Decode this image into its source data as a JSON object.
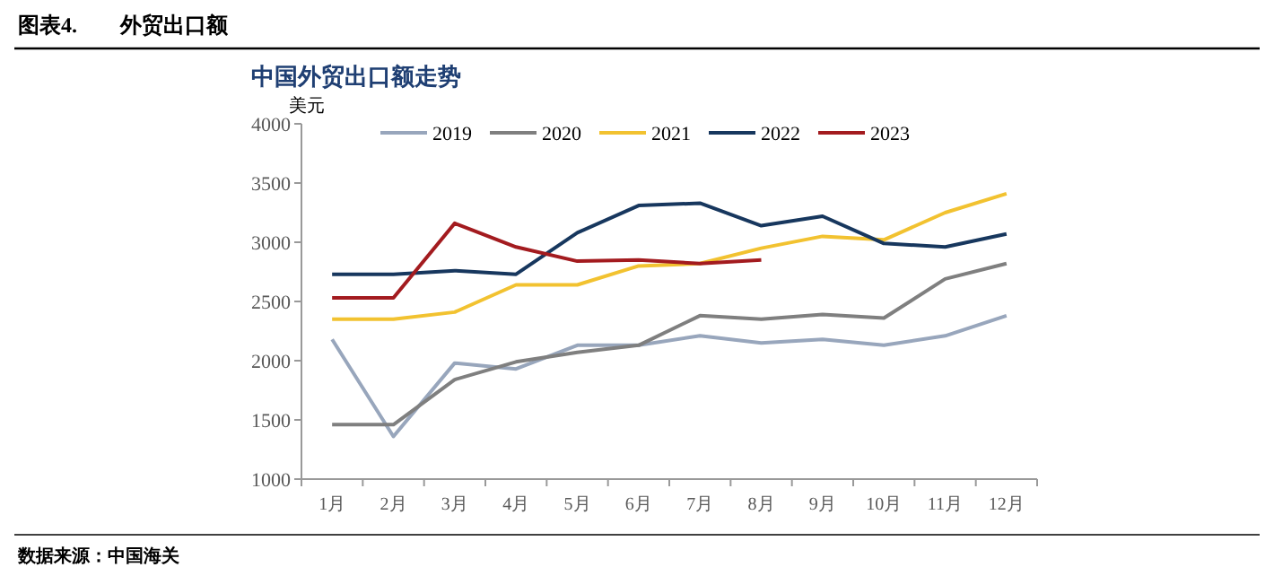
{
  "chart_data": {
    "type": "line",
    "title": "中国外贸出口额走势",
    "subtitle": "图表4.　　外贸出口额",
    "ylabel": "美元",
    "annotations": [
      "数据来源：中国海关"
    ],
    "categories": [
      "1月",
      "2月",
      "3月",
      "4月",
      "5月",
      "6月",
      "7月",
      "8月",
      "9月",
      "10月",
      "11月",
      "12月"
    ],
    "ylim": [
      1000,
      4000
    ],
    "yticks": [
      1000,
      1500,
      2000,
      2500,
      3000,
      3500,
      4000
    ],
    "grid": false,
    "legend": "top",
    "marker": "none",
    "line_style": "solid",
    "series": [
      {
        "name": "2019",
        "color": "#98a6bc",
        "values": [
          2180,
          1360,
          1980,
          1930,
          2130,
          2130,
          2210,
          2150,
          2180,
          2130,
          2210,
          2380
        ]
      },
      {
        "name": "2020",
        "color": "#7f7f7f",
        "values": [
          1460,
          1460,
          1840,
          1990,
          2070,
          2130,
          2380,
          2350,
          2390,
          2360,
          2690,
          2820
        ]
      },
      {
        "name": "2021",
        "color": "#f2c230",
        "values": [
          2350,
          2350,
          2410,
          2640,
          2640,
          2800,
          2820,
          2950,
          3050,
          3020,
          3250,
          3410
        ]
      },
      {
        "name": "2022",
        "color": "#17375e",
        "values": [
          2730,
          2730,
          2760,
          2730,
          3080,
          3310,
          3330,
          3140,
          3220,
          2990,
          2960,
          3070
        ]
      },
      {
        "name": "2023",
        "color": "#a31b1f",
        "values": [
          2530,
          2530,
          3160,
          2960,
          2840,
          2850,
          2820,
          2850,
          null,
          null,
          null,
          null
        ]
      }
    ]
  }
}
